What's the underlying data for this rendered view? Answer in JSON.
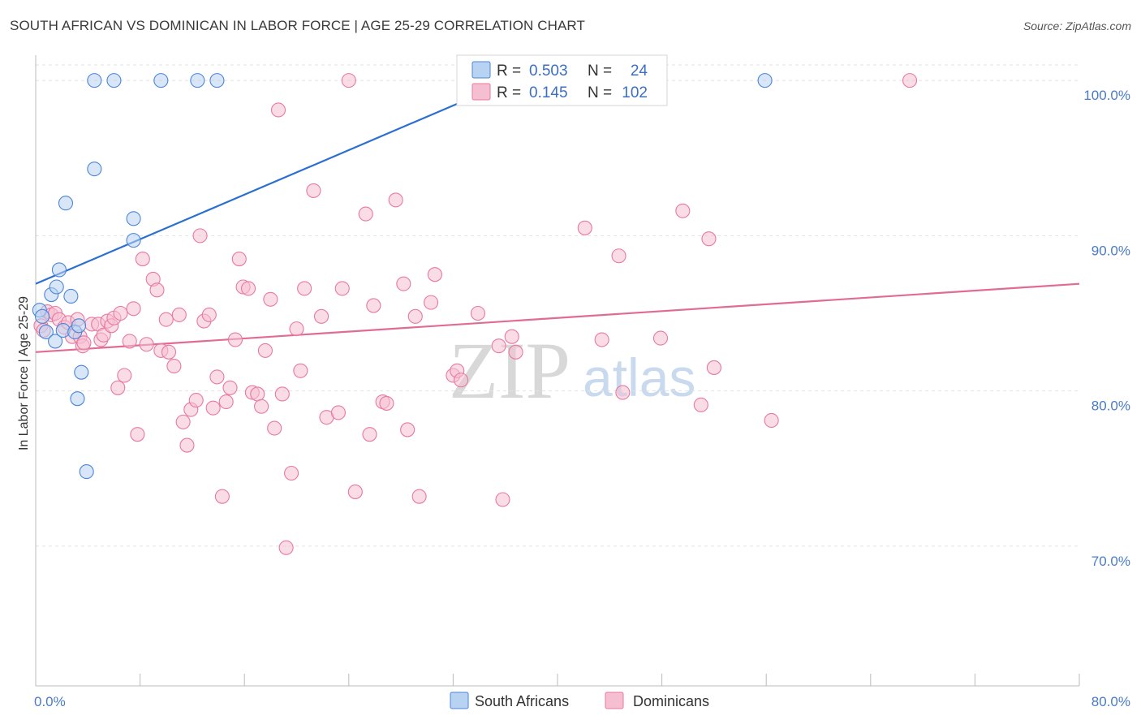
{
  "title": "SOUTH AFRICAN VS DOMINICAN IN LABOR FORCE | AGE 25-29 CORRELATION CHART",
  "source": "Source: ZipAtlas.com",
  "watermark": {
    "zip": "ZIP",
    "atlas": "atlas"
  },
  "colors": {
    "blue": "#4a86d8",
    "blue_fill": "#b8d2f2",
    "blue_line": "#2b6fd0",
    "pink": "#e8799f",
    "pink_fill": "#f6bfd1",
    "pink_line": "#e06b95",
    "grid": "#e2e2e2",
    "tick_text": "#4a7cc9"
  },
  "legend": {
    "r_label": "R =",
    "n_label": "N =",
    "series": [
      {
        "r": "0.503",
        "n": "24"
      },
      {
        "r": "0.145",
        "n": "102"
      }
    ]
  },
  "chart_data": {
    "type": "scatter",
    "title": "SOUTH AFRICAN VS DOMINICAN IN LABOR FORCE | AGE 25-29 CORRELATION CHART",
    "xlabel": "",
    "ylabel": "In Labor Force | Age 25-29",
    "xlim": [
      0,
      80
    ],
    "ylim": [
      61,
      101
    ],
    "x_tick_labels": [
      "0.0%",
      "80.0%"
    ],
    "y_ticks": [
      70,
      80,
      90,
      100
    ],
    "y_tick_labels": [
      "70.0%",
      "80.0%",
      "90.0%",
      "100.0%"
    ],
    "legend_position": "top-center",
    "series": [
      {
        "name": "South Africans",
        "r": 0.503,
        "n": 24,
        "trend": {
          "x": [
            0,
            36.5
          ],
          "y": [
            86.9,
            100
          ]
        },
        "points": [
          [
            0.3,
            85.2
          ],
          [
            0.5,
            84.8
          ],
          [
            0.8,
            83.8
          ],
          [
            1.2,
            86.2
          ],
          [
            1.5,
            83.2
          ],
          [
            1.6,
            86.7
          ],
          [
            1.8,
            87.8
          ],
          [
            2.1,
            83.9
          ],
          [
            2.3,
            92.1
          ],
          [
            2.7,
            86.1
          ],
          [
            3.0,
            83.8
          ],
          [
            3.2,
            79.5
          ],
          [
            3.3,
            84.2
          ],
          [
            3.5,
            81.2
          ],
          [
            3.9,
            74.8
          ],
          [
            4.5,
            94.3
          ],
          [
            4.5,
            100.0
          ],
          [
            6.0,
            100.0
          ],
          [
            7.5,
            89.7
          ],
          [
            7.5,
            91.1
          ],
          [
            9.6,
            100.0
          ],
          [
            12.4,
            100.0
          ],
          [
            13.9,
            100.0
          ],
          [
            55.9,
            100.0
          ]
        ]
      },
      {
        "name": "Dominicans",
        "r": 0.145,
        "n": 102,
        "trend": {
          "x": [
            0,
            80
          ],
          "y": [
            82.5,
            86.9
          ]
        },
        "points": [
          [
            0.4,
            84.2
          ],
          [
            0.6,
            83.9
          ],
          [
            0.9,
            85.1
          ],
          [
            1.2,
            84.9
          ],
          [
            1.5,
            85.0
          ],
          [
            1.8,
            84.6
          ],
          [
            2.2,
            84.1
          ],
          [
            2.5,
            84.4
          ],
          [
            2.8,
            83.5
          ],
          [
            3.2,
            84.6
          ],
          [
            3.4,
            83.5
          ],
          [
            3.6,
            82.9
          ],
          [
            3.7,
            83.1
          ],
          [
            4.3,
            84.3
          ],
          [
            4.8,
            84.3
          ],
          [
            5.0,
            83.3
          ],
          [
            5.2,
            83.6
          ],
          [
            5.5,
            84.5
          ],
          [
            5.8,
            84.2
          ],
          [
            6.0,
            84.7
          ],
          [
            6.3,
            80.2
          ],
          [
            6.5,
            85.0
          ],
          [
            6.8,
            81.0
          ],
          [
            7.2,
            83.2
          ],
          [
            7.5,
            85.3
          ],
          [
            7.8,
            77.2
          ],
          [
            8.2,
            88.5
          ],
          [
            8.5,
            83.0
          ],
          [
            9.0,
            87.2
          ],
          [
            9.3,
            86.5
          ],
          [
            9.6,
            82.6
          ],
          [
            10.0,
            84.6
          ],
          [
            10.2,
            82.5
          ],
          [
            10.6,
            81.6
          ],
          [
            11.0,
            84.9
          ],
          [
            11.3,
            78.0
          ],
          [
            11.6,
            76.5
          ],
          [
            11.9,
            78.8
          ],
          [
            12.3,
            79.4
          ],
          [
            12.6,
            90.0
          ],
          [
            12.9,
            84.5
          ],
          [
            13.3,
            84.9
          ],
          [
            13.6,
            78.9
          ],
          [
            13.9,
            80.9
          ],
          [
            14.3,
            73.2
          ],
          [
            14.6,
            79.3
          ],
          [
            14.9,
            80.2
          ],
          [
            15.3,
            83.3
          ],
          [
            15.6,
            88.5
          ],
          [
            15.9,
            86.7
          ],
          [
            16.3,
            86.6
          ],
          [
            16.6,
            79.9
          ],
          [
            17.0,
            79.8
          ],
          [
            17.3,
            79.0
          ],
          [
            17.6,
            82.6
          ],
          [
            18.0,
            85.9
          ],
          [
            18.3,
            77.6
          ],
          [
            18.6,
            98.1
          ],
          [
            18.9,
            79.8
          ],
          [
            19.2,
            69.9
          ],
          [
            19.6,
            74.7
          ],
          [
            20.0,
            84.0
          ],
          [
            20.3,
            81.3
          ],
          [
            20.6,
            86.6
          ],
          [
            21.3,
            92.9
          ],
          [
            21.9,
            84.8
          ],
          [
            22.3,
            78.3
          ],
          [
            23.2,
            78.6
          ],
          [
            23.5,
            86.6
          ],
          [
            24.0,
            100.0
          ],
          [
            24.5,
            73.5
          ],
          [
            25.3,
            91.4
          ],
          [
            25.6,
            77.2
          ],
          [
            25.9,
            85.5
          ],
          [
            26.6,
            79.3
          ],
          [
            26.9,
            79.2
          ],
          [
            27.6,
            92.3
          ],
          [
            28.2,
            86.9
          ],
          [
            28.5,
            77.5
          ],
          [
            29.1,
            84.8
          ],
          [
            29.4,
            73.2
          ],
          [
            30.3,
            85.7
          ],
          [
            30.6,
            87.5
          ],
          [
            32.0,
            81.0
          ],
          [
            32.3,
            81.3
          ],
          [
            32.6,
            80.7
          ],
          [
            33.9,
            85.0
          ],
          [
            35.5,
            82.9
          ],
          [
            35.8,
            73.0
          ],
          [
            36.5,
            83.5
          ],
          [
            36.8,
            82.5
          ],
          [
            42.1,
            90.5
          ],
          [
            43.4,
            83.3
          ],
          [
            44.7,
            88.7
          ],
          [
            45.0,
            79.9
          ],
          [
            47.9,
            83.4
          ],
          [
            49.6,
            91.6
          ],
          [
            51.0,
            79.1
          ],
          [
            51.6,
            89.8
          ],
          [
            52.0,
            81.5
          ],
          [
            56.4,
            78.1
          ],
          [
            67.0,
            100.0
          ]
        ]
      }
    ]
  }
}
